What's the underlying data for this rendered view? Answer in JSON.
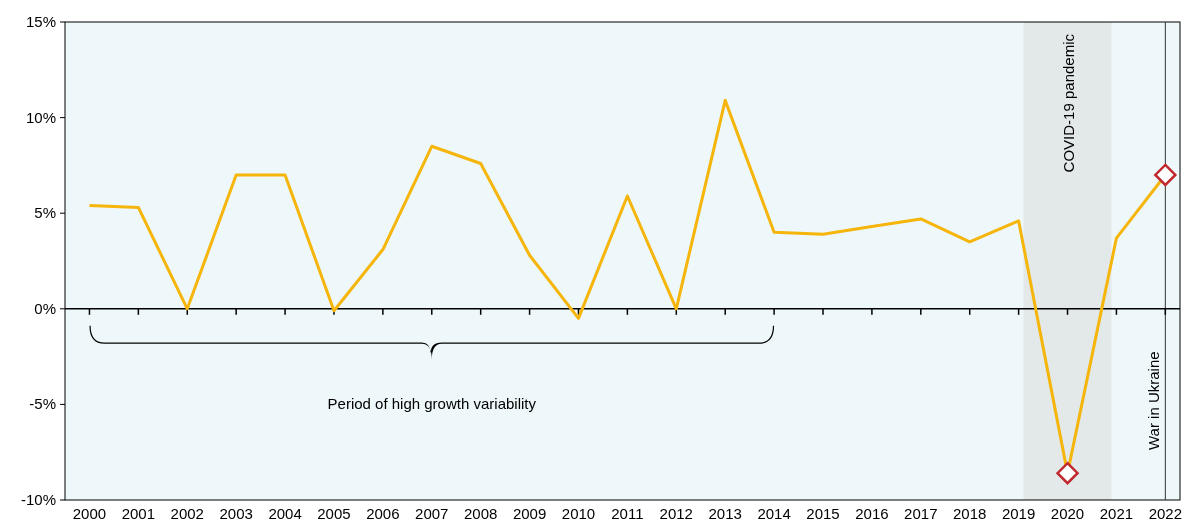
{
  "chart_data": {
    "type": "line",
    "x": [
      2000,
      2001,
      2002,
      2003,
      2004,
      2005,
      2006,
      2007,
      2008,
      2009,
      2010,
      2011,
      2012,
      2013,
      2014,
      2015,
      2016,
      2017,
      2018,
      2019,
      2020,
      2021,
      2022
    ],
    "series": [
      {
        "color": "#f5b50a",
        "values": [
          5.4,
          5.3,
          0,
          7.0,
          7.0,
          -0.1,
          3.1,
          8.5,
          7.6,
          2.8,
          -0.5,
          5.9,
          0,
          10.9,
          4.0,
          3.9,
          4.3,
          4.7,
          3.5,
          4.6,
          -8.6,
          3.7,
          7.0
        ]
      },
      {
        "type": "scatter",
        "marker": "diamond",
        "color": "#c0282d",
        "x": [
          2020,
          2022
        ],
        "values": [
          -8.6,
          7.0
        ]
      }
    ],
    "xlim": [
      1999.5,
      2022.3
    ],
    "xticks": [
      2000,
      2001,
      2002,
      2003,
      2004,
      2005,
      2006,
      2007,
      2008,
      2009,
      2010,
      2011,
      2012,
      2013,
      2014,
      2015,
      2016,
      2017,
      2018,
      2019,
      2020,
      2021,
      2022
    ],
    "ylim": [
      -10,
      15
    ],
    "yticks": [
      {
        "value": -10,
        "label": "-10%"
      },
      {
        "value": -5,
        "label": "-5%"
      },
      {
        "value": 0,
        "label": "0%"
      },
      {
        "value": 5,
        "label": "5%"
      },
      {
        "value": 10,
        "label": "10%"
      },
      {
        "value": 15,
        "label": "15%"
      }
    ],
    "bands": [
      {
        "axis": "x",
        "from": 2019.1,
        "to": 2020.9,
        "label": "COVID-19 pandemic",
        "color": "#e3e8e8"
      }
    ],
    "ref_lines": [
      {
        "axis": "x",
        "value": 2022,
        "label": "War in Ukraine",
        "color": "#333333"
      },
      {
        "axis": "y",
        "value": 0,
        "color": "#000000"
      }
    ],
    "annotations": [
      "Period of high growth variability"
    ],
    "grid": false
  }
}
